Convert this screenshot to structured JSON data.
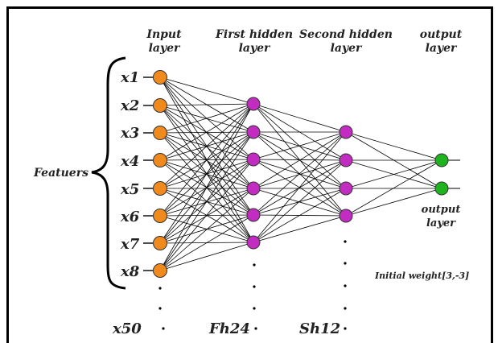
{
  "headers": {
    "input": [
      "Input",
      "layer"
    ],
    "hidden1": [
      "First hidden",
      "layer"
    ],
    "hidden2": [
      "Second hidden",
      "layer"
    ],
    "output": [
      "output",
      "layer"
    ]
  },
  "features_label": "Featuers",
  "input_labels": [
    "x1",
    "x2",
    "x3",
    "x4",
    "x5",
    "x6",
    "x7",
    "x8"
  ],
  "bottom_labels": {
    "input": "x50",
    "hidden1": "Fh24",
    "hidden2": "Sh12"
  },
  "output_side_label": [
    "output",
    "layer"
  ],
  "weight_note": "Initial weight[3,-3]",
  "colors": {
    "input_node": "#f08a1c",
    "hidden_node": "#c32cc0",
    "output_node": "#1fb31f",
    "edge": "#000000"
  },
  "layer_sizes_shown": {
    "input": 8,
    "hidden1": 6,
    "hidden2": 4,
    "output": 2
  }
}
